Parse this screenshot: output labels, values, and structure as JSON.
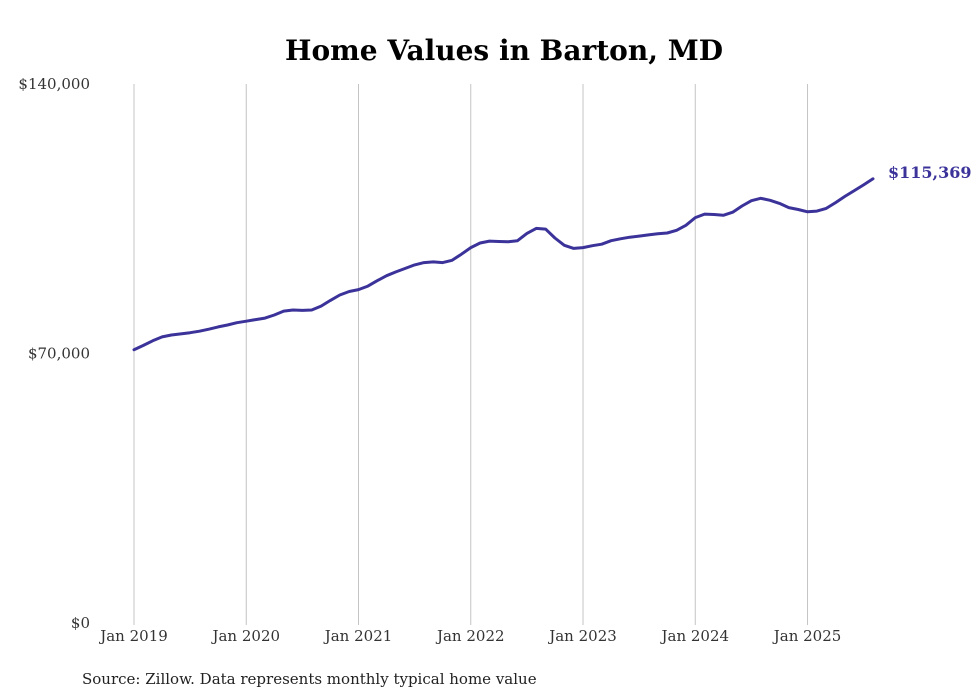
{
  "chart_data": {
    "type": "line",
    "title": "Home Values in Barton, MD",
    "xlabel": "",
    "ylabel": "",
    "x_ticks": [
      "Jan 2019",
      "Jan 2020",
      "Jan 2021",
      "Jan 2022",
      "Jan 2023",
      "Jan 2024",
      "Jan 2025"
    ],
    "y_ticks": [
      "$0",
      "$70,000",
      "$140,000"
    ],
    "y_tick_values": [
      0,
      70000,
      140000
    ],
    "ylim": [
      0,
      140000
    ],
    "xlim": [
      "2019-01",
      "2025-06"
    ],
    "grid": "vertical lines at each January",
    "line_color": "#3b3399",
    "end_label": "$115,369",
    "series": [
      {
        "points": [
          [
            "2019-01",
            71000
          ],
          [
            "2019-02",
            72100
          ],
          [
            "2019-03",
            73300
          ],
          [
            "2019-04",
            74300
          ],
          [
            "2019-05",
            74800
          ],
          [
            "2019-06",
            75100
          ],
          [
            "2019-07",
            75400
          ],
          [
            "2019-08",
            75800
          ],
          [
            "2019-09",
            76300
          ],
          [
            "2019-10",
            76900
          ],
          [
            "2019-11",
            77400
          ],
          [
            "2019-12",
            78000
          ],
          [
            "2020-01",
            78400
          ],
          [
            "2020-02",
            78800
          ],
          [
            "2020-03",
            79200
          ],
          [
            "2020-04",
            80000
          ],
          [
            "2020-05",
            81000
          ],
          [
            "2020-06",
            81300
          ],
          [
            "2020-07",
            81200
          ],
          [
            "2020-08",
            81300
          ],
          [
            "2020-09",
            82300
          ],
          [
            "2020-10",
            83800
          ],
          [
            "2020-11",
            85200
          ],
          [
            "2020-12",
            86100
          ],
          [
            "2021-01",
            86600
          ],
          [
            "2021-02",
            87500
          ],
          [
            "2021-03",
            88900
          ],
          [
            "2021-04",
            90200
          ],
          [
            "2021-05",
            91200
          ],
          [
            "2021-06",
            92100
          ],
          [
            "2021-07",
            93000
          ],
          [
            "2021-08",
            93600
          ],
          [
            "2021-09",
            93800
          ],
          [
            "2021-10",
            93600
          ],
          [
            "2021-11",
            94200
          ],
          [
            "2021-12",
            95800
          ],
          [
            "2022-01",
            97500
          ],
          [
            "2022-02",
            98700
          ],
          [
            "2022-03",
            99200
          ],
          [
            "2022-04",
            99100
          ],
          [
            "2022-05",
            99000
          ],
          [
            "2022-06",
            99300
          ],
          [
            "2022-07",
            101200
          ],
          [
            "2022-08",
            102500
          ],
          [
            "2022-09",
            102300
          ],
          [
            "2022-10",
            100000
          ],
          [
            "2022-11",
            98100
          ],
          [
            "2022-12",
            97300
          ],
          [
            "2023-01",
            97500
          ],
          [
            "2023-02",
            98000
          ],
          [
            "2023-03",
            98400
          ],
          [
            "2023-04",
            99300
          ],
          [
            "2023-05",
            99800
          ],
          [
            "2023-06",
            100200
          ],
          [
            "2023-07",
            100500
          ],
          [
            "2023-08",
            100800
          ],
          [
            "2023-09",
            101100
          ],
          [
            "2023-10",
            101300
          ],
          [
            "2023-11",
            102000
          ],
          [
            "2023-12",
            103300
          ],
          [
            "2024-01",
            105300
          ],
          [
            "2024-02",
            106200
          ],
          [
            "2024-03",
            106100
          ],
          [
            "2024-04",
            105900
          ],
          [
            "2024-05",
            106700
          ],
          [
            "2024-06",
            108300
          ],
          [
            "2024-07",
            109700
          ],
          [
            "2024-08",
            110300
          ],
          [
            "2024-09",
            109800
          ],
          [
            "2024-10",
            109000
          ],
          [
            "2024-11",
            107900
          ],
          [
            "2024-12",
            107400
          ],
          [
            "2025-01",
            106800
          ],
          [
            "2025-02",
            107000
          ],
          [
            "2025-03",
            107700
          ],
          [
            "2025-04",
            109200
          ],
          [
            "2025-05",
            110800
          ],
          [
            "2025-06",
            112300
          ],
          [
            "2025-07",
            113800
          ],
          [
            "2025-08",
            115369
          ]
        ]
      }
    ]
  },
  "source_note": "Source: Zillow. Data represents monthly typical home value"
}
